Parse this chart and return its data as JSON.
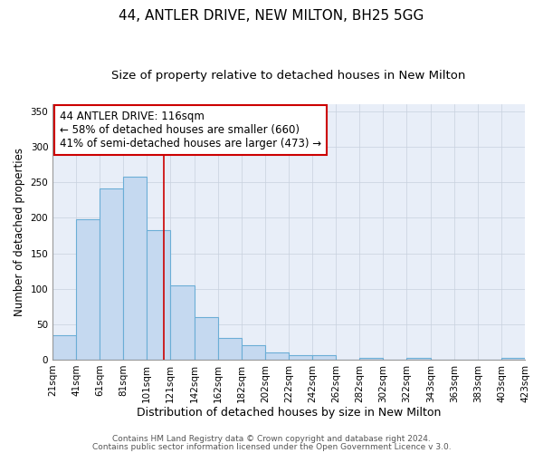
{
  "title1": "44, ANTLER DRIVE, NEW MILTON, BH25 5GG",
  "title2": "Size of property relative to detached houses in New Milton",
  "xlabel": "Distribution of detached houses by size in New Milton",
  "ylabel": "Number of detached properties",
  "bar_left_edges": [
    21,
    41,
    61,
    81,
    101,
    121,
    142,
    162,
    182,
    202,
    222,
    242,
    262,
    282,
    302,
    322,
    343,
    363,
    383,
    403
  ],
  "bar_widths": [
    20,
    20,
    20,
    20,
    20,
    21,
    20,
    20,
    20,
    20,
    20,
    20,
    20,
    20,
    20,
    21,
    20,
    20,
    20,
    20
  ],
  "bar_heights": [
    35,
    198,
    242,
    258,
    183,
    105,
    60,
    30,
    20,
    10,
    6,
    6,
    0,
    3,
    0,
    3,
    0,
    0,
    0,
    2
  ],
  "bar_color": "#c5d9f0",
  "bar_edgecolor": "#6baed6",
  "bar_linewidth": 0.8,
  "grid_color": "#c8d0de",
  "background_color": "#e8eef8",
  "red_line_x": 116,
  "red_line_color": "#cc0000",
  "annotation_line1": "44 ANTLER DRIVE: 116sqm",
  "annotation_line2": "← 58% of detached houses are smaller (660)",
  "annotation_line3": "41% of semi-detached houses are larger (473) →",
  "annotation_box_color": "white",
  "annotation_box_edgecolor": "#cc0000",
  "annotation_fontsize": 8.5,
  "ylim": [
    0,
    360
  ],
  "yticks": [
    0,
    50,
    100,
    150,
    200,
    250,
    300,
    350
  ],
  "xlim": [
    21,
    423
  ],
  "xtick_labels": [
    "21sqm",
    "41sqm",
    "61sqm",
    "81sqm",
    "101sqm",
    "121sqm",
    "142sqm",
    "162sqm",
    "182sqm",
    "202sqm",
    "222sqm",
    "242sqm",
    "262sqm",
    "282sqm",
    "302sqm",
    "322sqm",
    "343sqm",
    "363sqm",
    "383sqm",
    "403sqm",
    "423sqm"
  ],
  "xtick_positions": [
    21,
    41,
    61,
    81,
    101,
    121,
    142,
    162,
    182,
    202,
    222,
    242,
    262,
    282,
    302,
    322,
    343,
    363,
    383,
    403,
    423
  ],
  "title1_fontsize": 11,
  "title2_fontsize": 9.5,
  "xlabel_fontsize": 9,
  "ylabel_fontsize": 8.5,
  "tick_fontsize": 7.5,
  "footer1": "Contains HM Land Registry data © Crown copyright and database right 2024.",
  "footer2": "Contains public sector information licensed under the Open Government Licence v 3.0.",
  "footer_fontsize": 6.5
}
